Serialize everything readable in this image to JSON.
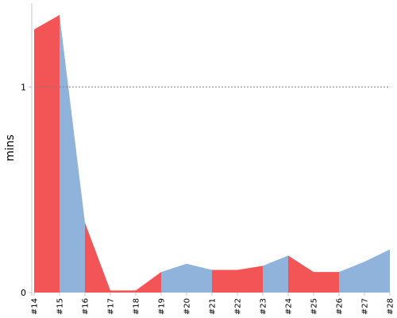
{
  "chart_data": {
    "type": "area",
    "title": "",
    "xlabel": "",
    "ylabel": "mins",
    "ylim": [
      0,
      1.4
    ],
    "yticks": [
      0,
      1
    ],
    "reference_line": 1,
    "grid": false,
    "legend": "none",
    "categories": [
      "#14",
      "#15",
      "#16",
      "#17",
      "#18",
      "#19",
      "#20",
      "#21",
      "#22",
      "#23",
      "#24",
      "#25",
      "#26",
      "#27",
      "#28"
    ],
    "values": [
      1.28,
      1.35,
      0.34,
      0.01,
      0.01,
      0.1,
      0.14,
      0.11,
      0.11,
      0.13,
      0.18,
      0.1,
      0.1,
      0.15,
      0.21
    ],
    "segment_status": [
      "failed",
      "success",
      "failed",
      "failed",
      "failed",
      "success",
      "success",
      "failed",
      "failed",
      "success",
      "failed",
      "failed",
      "success",
      "success"
    ],
    "colors": {
      "success": "#8fb3db",
      "failed": "#f35557",
      "reference": "#808080",
      "axis": "#c8c8c8"
    }
  }
}
